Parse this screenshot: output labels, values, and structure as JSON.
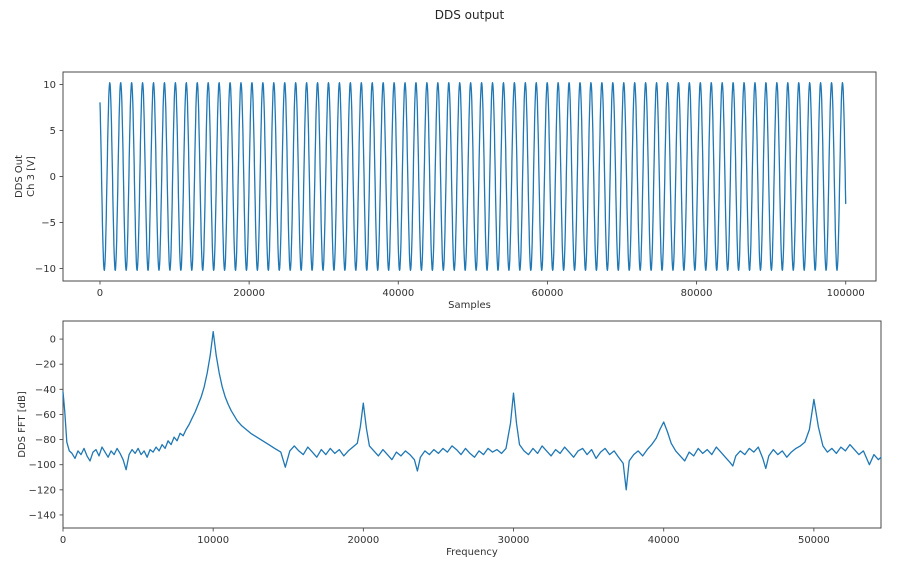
{
  "figure": {
    "title": "DDS output",
    "background": "#ffffff",
    "line_color": "#1f77b4",
    "spine_color": "#4a4a4a",
    "text_color": "#333333"
  },
  "chart_data": [
    {
      "id": "dds-output",
      "type": "line",
      "title": "DDS output",
      "xlabel": "Samples",
      "ylabel_lines": [
        "DDS Out",
        "Ch 3 [V]"
      ],
      "xlim": [
        -4960,
        104060
      ],
      "ylim": [
        -11.36,
        11.36
      ],
      "xticks": [
        0,
        20000,
        40000,
        60000,
        80000,
        100000
      ],
      "yticks": [
        10,
        5,
        0,
        -5,
        -10
      ],
      "grid": false,
      "legend": "none",
      "signal": {
        "kind": "sine",
        "x_start": 0,
        "x_end": 100000,
        "amplitude": 10.2,
        "cycles_visible": 68.19,
        "start_value": 8,
        "start_direction": "falling",
        "end_value": -3
      }
    },
    {
      "id": "dds-fft",
      "type": "line",
      "title": "",
      "xlabel": "Frequency",
      "ylabel_lines": [
        "DDS FFT [dB]"
      ],
      "xlim": [
        0,
        54470
      ],
      "ylim": [
        -150.4,
        14.4
      ],
      "xticks": [
        0,
        10000,
        20000,
        30000,
        40000,
        50000
      ],
      "yticks": [
        0,
        -20,
        -40,
        -60,
        -80,
        -100,
        -120,
        -140
      ],
      "grid": false,
      "legend": "none",
      "peaks": [
        {
          "freq": 10000,
          "db": 6
        },
        {
          "freq": 20000,
          "db": -51
        },
        {
          "freq": 30000,
          "db": -43
        },
        {
          "freq": 40000,
          "db": -66
        },
        {
          "freq": 50000,
          "db": -48
        }
      ],
      "noise_floor_db": -92,
      "points": [
        [
          0,
          -42
        ],
        [
          120,
          -58
        ],
        [
          250,
          -82
        ],
        [
          420,
          -89
        ],
        [
          600,
          -91
        ],
        [
          800,
          -95
        ],
        [
          1000,
          -89
        ],
        [
          1200,
          -92
        ],
        [
          1400,
          -87
        ],
        [
          1600,
          -93
        ],
        [
          1800,
          -97
        ],
        [
          2000,
          -90
        ],
        [
          2200,
          -88
        ],
        [
          2400,
          -93
        ],
        [
          2600,
          -86
        ],
        [
          2800,
          -90
        ],
        [
          3000,
          -94
        ],
        [
          3200,
          -89
        ],
        [
          3400,
          -92
        ],
        [
          3600,
          -87
        ],
        [
          3800,
          -91
        ],
        [
          4000,
          -96
        ],
        [
          4200,
          -104
        ],
        [
          4400,
          -92
        ],
        [
          4600,
          -88
        ],
        [
          4800,
          -91
        ],
        [
          5000,
          -87
        ],
        [
          5200,
          -92
        ],
        [
          5400,
          -89
        ],
        [
          5600,
          -94
        ],
        [
          5800,
          -88
        ],
        [
          6000,
          -90
        ],
        [
          6200,
          -86
        ],
        [
          6400,
          -89
        ],
        [
          6600,
          -84
        ],
        [
          6800,
          -87
        ],
        [
          7000,
          -81
        ],
        [
          7200,
          -84
        ],
        [
          7400,
          -78
        ],
        [
          7600,
          -81
        ],
        [
          7800,
          -75
        ],
        [
          8000,
          -77
        ],
        [
          8200,
          -72
        ],
        [
          8400,
          -68
        ],
        [
          8600,
          -63
        ],
        [
          8800,
          -58
        ],
        [
          9000,
          -52
        ],
        [
          9200,
          -46
        ],
        [
          9400,
          -38
        ],
        [
          9600,
          -27
        ],
        [
          9800,
          -13
        ],
        [
          10000,
          6
        ],
        [
          10200,
          -13
        ],
        [
          10400,
          -27
        ],
        [
          10600,
          -38
        ],
        [
          10800,
          -46
        ],
        [
          11000,
          -52
        ],
        [
          11200,
          -57
        ],
        [
          11400,
          -61
        ],
        [
          11600,
          -65
        ],
        [
          11900,
          -69
        ],
        [
          12200,
          -72
        ],
        [
          12500,
          -75
        ],
        [
          12900,
          -78
        ],
        [
          13300,
          -81
        ],
        [
          13700,
          -84
        ],
        [
          14100,
          -87
        ],
        [
          14500,
          -90
        ],
        [
          14800,
          -102
        ],
        [
          15100,
          -89
        ],
        [
          15400,
          -85
        ],
        [
          15700,
          -89
        ],
        [
          16000,
          -92
        ],
        [
          16300,
          -86
        ],
        [
          16600,
          -90
        ],
        [
          16900,
          -94
        ],
        [
          17200,
          -88
        ],
        [
          17500,
          -92
        ],
        [
          17800,
          -87
        ],
        [
          18100,
          -91
        ],
        [
          18400,
          -88
        ],
        [
          18700,
          -93
        ],
        [
          19000,
          -89
        ],
        [
          19300,
          -86
        ],
        [
          19600,
          -83
        ],
        [
          19800,
          -70
        ],
        [
          20000,
          -51
        ],
        [
          20200,
          -71
        ],
        [
          20400,
          -85
        ],
        [
          20700,
          -89
        ],
        [
          21000,
          -93
        ],
        [
          21300,
          -88
        ],
        [
          21600,
          -92
        ],
        [
          21900,
          -96
        ],
        [
          22200,
          -90
        ],
        [
          22500,
          -93
        ],
        [
          22800,
          -89
        ],
        [
          23100,
          -92
        ],
        [
          23400,
          -96
        ],
        [
          23600,
          -105
        ],
        [
          23800,
          -94
        ],
        [
          24100,
          -89
        ],
        [
          24400,
          -92
        ],
        [
          24700,
          -88
        ],
        [
          25000,
          -91
        ],
        [
          25300,
          -87
        ],
        [
          25600,
          -90
        ],
        [
          25900,
          -85
        ],
        [
          26200,
          -88
        ],
        [
          26500,
          -92
        ],
        [
          26800,
          -87
        ],
        [
          27100,
          -91
        ],
        [
          27400,
          -94
        ],
        [
          27700,
          -89
        ],
        [
          28000,
          -92
        ],
        [
          28300,
          -87
        ],
        [
          28600,
          -90
        ],
        [
          28900,
          -88
        ],
        [
          29200,
          -91
        ],
        [
          29500,
          -87
        ],
        [
          29800,
          -67
        ],
        [
          30000,
          -43
        ],
        [
          30200,
          -67
        ],
        [
          30400,
          -84
        ],
        [
          30700,
          -89
        ],
        [
          31000,
          -92
        ],
        [
          31300,
          -87
        ],
        [
          31600,
          -91
        ],
        [
          31900,
          -85
        ],
        [
          32200,
          -89
        ],
        [
          32500,
          -93
        ],
        [
          32800,
          -88
        ],
        [
          33100,
          -91
        ],
        [
          33400,
          -86
        ],
        [
          33700,
          -90
        ],
        [
          34000,
          -94
        ],
        [
          34300,
          -89
        ],
        [
          34600,
          -87
        ],
        [
          34900,
          -92
        ],
        [
          35200,
          -88
        ],
        [
          35500,
          -95
        ],
        [
          35800,
          -90
        ],
        [
          36100,
          -87
        ],
        [
          36400,
          -92
        ],
        [
          36700,
          -89
        ],
        [
          37000,
          -94
        ],
        [
          37300,
          -99
        ],
        [
          37500,
          -120
        ],
        [
          37700,
          -97
        ],
        [
          38000,
          -92
        ],
        [
          38300,
          -89
        ],
        [
          38600,
          -93
        ],
        [
          38900,
          -88
        ],
        [
          39200,
          -84
        ],
        [
          39500,
          -79
        ],
        [
          39750,
          -72
        ],
        [
          40000,
          -66
        ],
        [
          40250,
          -74
        ],
        [
          40500,
          -83
        ],
        [
          40800,
          -89
        ],
        [
          41100,
          -93
        ],
        [
          41400,
          -97
        ],
        [
          41700,
          -90
        ],
        [
          42000,
          -93
        ],
        [
          42300,
          -87
        ],
        [
          42600,
          -91
        ],
        [
          42900,
          -88
        ],
        [
          43200,
          -92
        ],
        [
          43500,
          -86
        ],
        [
          43800,
          -90
        ],
        [
          44100,
          -94
        ],
        [
          44400,
          -98
        ],
        [
          44600,
          -101
        ],
        [
          44800,
          -93
        ],
        [
          45100,
          -89
        ],
        [
          45400,
          -92
        ],
        [
          45700,
          -87
        ],
        [
          46000,
          -90
        ],
        [
          46300,
          -86
        ],
        [
          46600,
          -95
        ],
        [
          46800,
          -103
        ],
        [
          47000,
          -93
        ],
        [
          47300,
          -88
        ],
        [
          47600,
          -92
        ],
        [
          47900,
          -89
        ],
        [
          48200,
          -94
        ],
        [
          48500,
          -90
        ],
        [
          48800,
          -87
        ],
        [
          49100,
          -85
        ],
        [
          49400,
          -82
        ],
        [
          49700,
          -72
        ],
        [
          50000,
          -48
        ],
        [
          50300,
          -70
        ],
        [
          50600,
          -85
        ],
        [
          50900,
          -90
        ],
        [
          51200,
          -87
        ],
        [
          51500,
          -91
        ],
        [
          51800,
          -86
        ],
        [
          52100,
          -89
        ],
        [
          52400,
          -84
        ],
        [
          52700,
          -88
        ],
        [
          53000,
          -92
        ],
        [
          53300,
          -89
        ],
        [
          53700,
          -100
        ],
        [
          54000,
          -92
        ],
        [
          54300,
          -96
        ],
        [
          54470,
          -94
        ]
      ]
    }
  ]
}
